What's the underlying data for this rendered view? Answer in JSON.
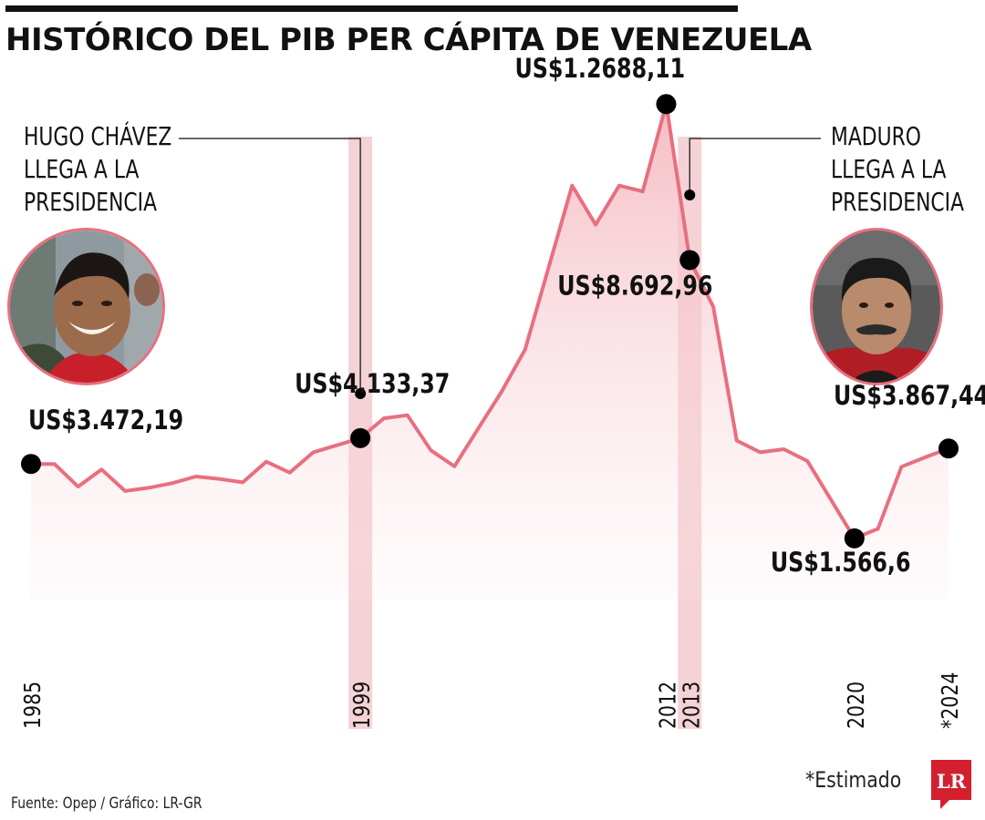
{
  "header": {
    "title": "HISTÓRICO DEL PIB PER CÁPITA DE VENEZUELA"
  },
  "annotations": {
    "chavez": [
      "HUGO CHÁVEZ",
      "LLEGA A LA",
      "PRESIDENCIA"
    ],
    "maduro": [
      "MADURO",
      "LLEGA A LA",
      "PRESIDENCIA"
    ]
  },
  "photos": {
    "chavez_alt": "Hugo Chávez",
    "maduro_alt": "Nicolás Maduro"
  },
  "footer": {
    "footnote": "*Estimado",
    "source": "Fuente: Opep / Gráfico: LR-GR",
    "logo_text": "LR"
  },
  "colors": {
    "line": "#e86f80",
    "fill_top": "#f3b5bd",
    "highlight_band": "#f3c7cc",
    "marker": "#000000",
    "photo_border": "#e8707e",
    "logo": "#d2202f"
  },
  "chart_data": {
    "type": "area",
    "title": "HISTÓRICO DEL PIB PER CÁPITA DE VENEZUELA",
    "xlabel": "",
    "ylabel": "",
    "x": [
      1985,
      1986,
      1987,
      1988,
      1989,
      1990,
      1991,
      1992,
      1993,
      1994,
      1995,
      1996,
      1997,
      1998,
      1999,
      2000,
      2001,
      2002,
      2003,
      2004,
      2005,
      2006,
      2007,
      2008,
      2009,
      2010,
      2011,
      2012,
      2013,
      2014,
      2015,
      2016,
      2017,
      2018,
      2019,
      2020,
      2021,
      2022,
      2023,
      2024
    ],
    "values": [
      3472.19,
      3470,
      2890,
      3330,
      2780,
      2860,
      2980,
      3150,
      3090,
      3000,
      3530,
      3250,
      3770,
      3950,
      4133.37,
      4640,
      4720,
      3820,
      3410,
      4370,
      5320,
      6400,
      8500,
      10600,
      9600,
      10600,
      10450,
      12688.11,
      8692.96,
      7500,
      4070,
      3770,
      3850,
      3550,
      2560,
      1566.6,
      1810,
      3400,
      3640,
      3867.44
    ],
    "ylim": [
      0,
      14000
    ],
    "grid": false,
    "labeled_points": [
      {
        "x": 1985,
        "label": "US$3.472,19"
      },
      {
        "x": 1999,
        "label": "US$4.133,37"
      },
      {
        "x": 2012,
        "label": "US$1.2688,11"
      },
      {
        "x": 2013,
        "label": "US$8.692,96"
      },
      {
        "x": 2020,
        "label": "US$1.566,6"
      },
      {
        "x": 2024,
        "label": "US$3.867,44"
      }
    ],
    "tick_labels": [
      "1985",
      "1999",
      "2012",
      "2013",
      "2020",
      "*2024"
    ],
    "highlight_years": [
      1999,
      2013
    ]
  }
}
